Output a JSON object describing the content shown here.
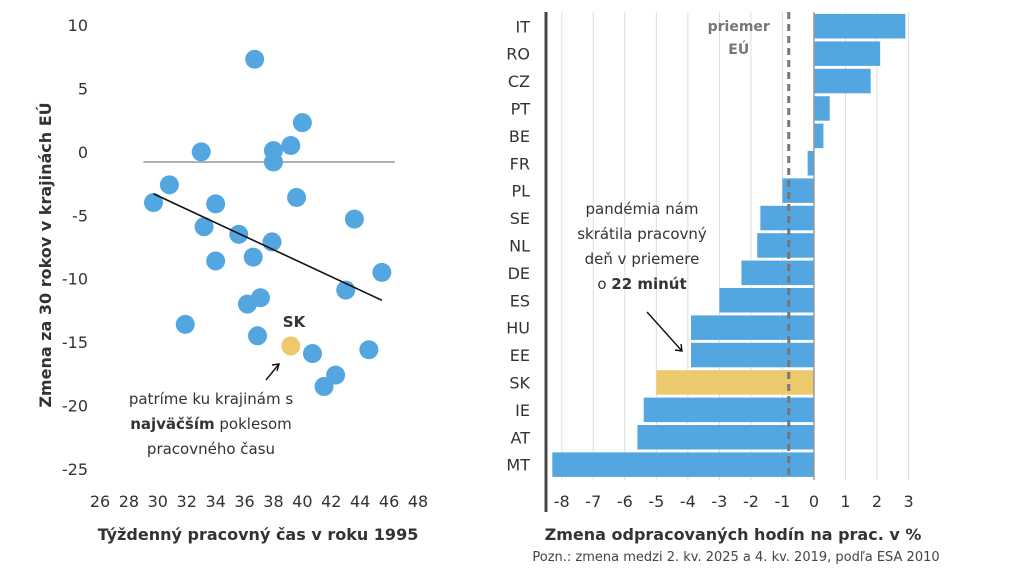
{
  "chart_data": [
    {
      "type": "scatter",
      "xlabel": "Týždenný pracovný čas v roku 1995",
      "ylabel": "Zmena za 30 rokov v krajinách EÚ",
      "xlim": [
        26,
        48
      ],
      "ylim": [
        -25,
        10
      ],
      "x_ticks": [
        "26",
        "28",
        "30",
        "32",
        "34",
        "36",
        "38",
        "40",
        "42",
        "44",
        "46",
        "48"
      ],
      "y_ticks": [
        "10",
        "5",
        "0",
        "-5",
        "-10",
        "-15",
        "-20",
        "-25"
      ],
      "points": [
        {
          "x": 36.7,
          "y": 7.3
        },
        {
          "x": 40.0,
          "y": 2.3
        },
        {
          "x": 39.2,
          "y": 0.5
        },
        {
          "x": 38.0,
          "y": 0.1
        },
        {
          "x": 33.0,
          "y": 0.0
        },
        {
          "x": 38.0,
          "y": -0.8
        },
        {
          "x": 30.8,
          "y": -2.6
        },
        {
          "x": 29.7,
          "y": -4.0
        },
        {
          "x": 39.6,
          "y": -3.6
        },
        {
          "x": 34.0,
          "y": -4.1
        },
        {
          "x": 43.6,
          "y": -5.3
        },
        {
          "x": 33.2,
          "y": -5.9
        },
        {
          "x": 35.6,
          "y": -6.5
        },
        {
          "x": 37.9,
          "y": -7.1
        },
        {
          "x": 36.6,
          "y": -8.3
        },
        {
          "x": 34.0,
          "y": -8.6
        },
        {
          "x": 45.5,
          "y": -9.5
        },
        {
          "x": 43.0,
          "y": -10.9
        },
        {
          "x": 37.1,
          "y": -11.5
        },
        {
          "x": 36.2,
          "y": -12.0
        },
        {
          "x": 31.9,
          "y": -13.6
        },
        {
          "x": 36.9,
          "y": -14.5
        },
        {
          "x": 40.7,
          "y": -15.9
        },
        {
          "x": 44.6,
          "y": -15.6
        },
        {
          "x": 42.3,
          "y": -17.6
        },
        {
          "x": 41.5,
          "y": -18.5
        }
      ],
      "highlight": {
        "label": "SK",
        "x": 39.2,
        "y": -15.3,
        "color": "#EDC96E"
      },
      "trendline": {
        "x": [
          29.7,
          45.5
        ],
        "y": [
          -3.3,
          -11.7
        ]
      },
      "point_color": "#54A6E0",
      "annotation": {
        "line1": "patríme ku krajinám s",
        "line2_bold": "najväčším",
        "line2_rest": " poklesom",
        "line3": "pracovného času"
      }
    },
    {
      "type": "bar",
      "orientation": "horizontal",
      "xlabel": "Zmena odpracovaných hodín na prac. v %",
      "note": "Pozn.: zmena medzi 2. kv. 2025 a 4. kv. 2019, podľa ESA 2010",
      "xlim": [
        -8.5,
        3.3
      ],
      "x_ticks": [
        "-8",
        "-7",
        "-6",
        "-5",
        "-4",
        "-3",
        "-2",
        "-1",
        "0",
        "1",
        "2",
        "3"
      ],
      "categories": [
        "IT",
        "RO",
        "CZ",
        "PT",
        "BE",
        "FR",
        "PL",
        "SE",
        "NL",
        "DE",
        "ES",
        "HU",
        "EE",
        "SK",
        "IE",
        "AT",
        "MT"
      ],
      "values": [
        2.9,
        2.1,
        1.8,
        0.5,
        0.3,
        -0.2,
        -1.0,
        -1.7,
        -1.8,
        -2.3,
        -3.0,
        -3.9,
        -3.9,
        -5.0,
        -5.4,
        -5.6,
        -8.3
      ],
      "bar_color": "#54A6E0",
      "highlight_category": "SK",
      "highlight_color": "#EDC96E",
      "reference": {
        "value": -0.8,
        "label_line1": "priemer",
        "label_line2": "EÚ"
      },
      "annotation": {
        "line1": "pandémia nám",
        "line2": "skrátila pracovný",
        "line3": "deň v priemere",
        "line4_pre": "o ",
        "line4_bold": "22 minút"
      }
    }
  ]
}
